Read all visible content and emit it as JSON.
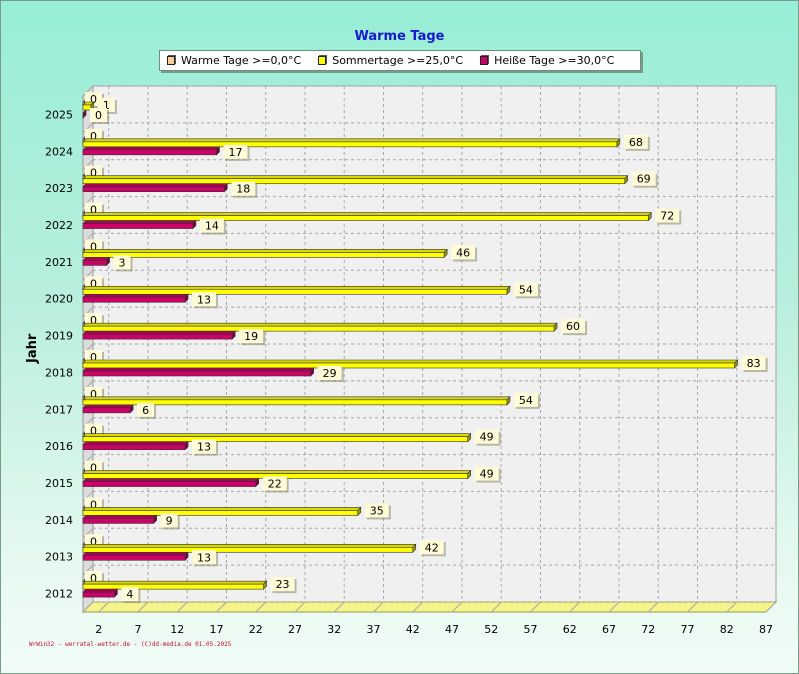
{
  "title": "Warme Tage",
  "legend": [
    {
      "label": "Warme Tage >=0,0°C",
      "color": "#ffcc99"
    },
    {
      "label": "Sommertage >=25,0°C",
      "color": "#ffff00"
    },
    {
      "label": "Heiße Tage >=30,0°C",
      "color": "#cc0066"
    }
  ],
  "footer": "WrWin32 - werratal-wetter.de - (C)dd-media.de 01.05.2025",
  "chart_data": {
    "type": "bar",
    "orientation": "horizontal",
    "title": "Warme Tage",
    "ylabel": "Jahr",
    "xlabel": "",
    "categories": [
      "2012",
      "2013",
      "2014",
      "2015",
      "2016",
      "2017",
      "2018",
      "2019",
      "2020",
      "2021",
      "2022",
      "2023",
      "2024",
      "2025"
    ],
    "series": [
      {
        "name": "Warme Tage >=0,0°C",
        "color": "#ffcc99",
        "values": [
          0,
          0,
          0,
          0,
          0,
          0,
          0,
          0,
          0,
          0,
          0,
          0,
          0,
          0
        ]
      },
      {
        "name": "Sommertage >=25,0°C",
        "color": "#ffff00",
        "values": [
          23,
          42,
          35,
          49,
          49,
          54,
          83,
          60,
          54,
          46,
          72,
          69,
          68,
          1
        ]
      },
      {
        "name": "Heiße Tage >=30,0°C",
        "color": "#cc0066",
        "values": [
          4,
          13,
          9,
          22,
          13,
          6,
          29,
          19,
          13,
          3,
          14,
          18,
          17,
          0
        ]
      }
    ],
    "xticks": [
      2,
      7,
      12,
      17,
      22,
      27,
      32,
      37,
      42,
      47,
      52,
      57,
      62,
      67,
      72,
      77,
      82,
      87
    ],
    "xlim": [
      0,
      87
    ],
    "grid": true,
    "legend_position": "top"
  }
}
